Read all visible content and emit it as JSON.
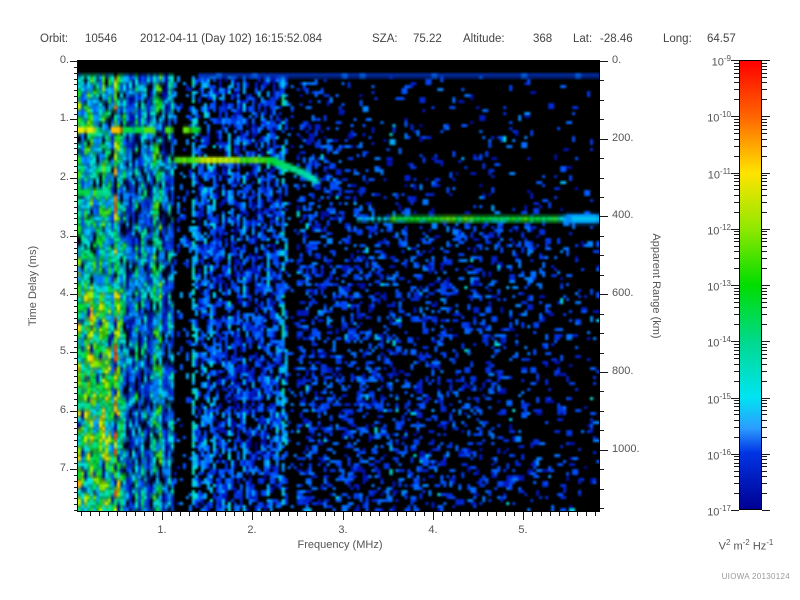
{
  "header": {
    "orbit_label": "Orbit:",
    "orbit_value": "10546",
    "datetime": "2012-04-11 (Day 102) 16:15:52.084",
    "sza_label": "SZA:",
    "sza_value": "75.22",
    "altitude_label": "Altitude:",
    "altitude_value": "368",
    "lat_label": "Lat:",
    "lat_value": "-28.46",
    "long_label": "Long:",
    "long_value": "64.57"
  },
  "footer": {
    "watermark": "UIOWA 20130124"
  },
  "chart_data": {
    "type": "heatmap",
    "description": "Radar sounder ionogram spectrogram: received spectral density vs frequency and time delay",
    "xlabel": "Frequency (MHz)",
    "ylabel_left": "Time Delay (ms)",
    "ylabel_right": "Apparent Range (km)",
    "x_range_mhz": [
      0.07,
      5.84
    ],
    "x_ticks_mhz": [
      1,
      2,
      3,
      4,
      5
    ],
    "x_tick_labels": [
      "1.",
      "2.",
      "3.",
      "4.",
      "5."
    ],
    "x_minor_step_mhz": 0.1,
    "y_range_ms": [
      0,
      7.72
    ],
    "y_ticks_ms": [
      0,
      1,
      2,
      3,
      4,
      5,
      6,
      7
    ],
    "y_tick_labels": [
      "0.",
      "1.",
      "2.",
      "3.",
      "4.",
      "5.",
      "6.",
      "7."
    ],
    "y_minor_step_ms": 0.1,
    "right_range_km": [
      0,
      1158
    ],
    "right_ticks_km": [
      0,
      200,
      400,
      600,
      800,
      1000
    ],
    "right_tick_labels": [
      "0.",
      "200.",
      "400.",
      "600.",
      "800.",
      "1000."
    ],
    "right_minor_step_km": 50,
    "grid": false,
    "legend_position": "right-colorbar",
    "colorbar": {
      "scale": "log",
      "max": "1e-9",
      "min": "1e-17",
      "tick_exponents": [
        "-9",
        "-10",
        "-11",
        "-12",
        "-13",
        "-14",
        "-15",
        "-16",
        "-17"
      ],
      "unit_parts": [
        {
          "t": "V",
          "s": "2"
        },
        {
          "t": "m",
          "s": "-2"
        },
        {
          "t": "Hz",
          "s": "-1"
        }
      ],
      "gradient": [
        {
          "p": 0.0,
          "c": "#ff0000"
        },
        {
          "p": 0.125,
          "c": "#ff6600"
        },
        {
          "p": 0.25,
          "c": "#ffe400"
        },
        {
          "p": 0.375,
          "c": "#90e800"
        },
        {
          "p": 0.5,
          "c": "#00dd00"
        },
        {
          "p": 0.625,
          "c": "#00d98c"
        },
        {
          "p": 0.75,
          "c": "#00e4f2"
        },
        {
          "p": 0.82,
          "c": "#2c9cff"
        },
        {
          "p": 0.875,
          "c": "#0034e4"
        },
        {
          "p": 1.0,
          "c": "#000092"
        }
      ]
    },
    "features": {
      "top_quiet_band_ms": [
        0,
        0.22
      ],
      "receiver_stripe_ms": 0.25,
      "local_plasma_noise_line": {
        "freq_mhz": [
          0.07,
          1.34
        ],
        "time_delay_ms": 1.18,
        "intensity": "green-yellow"
      },
      "plasma_harmonic_blob": {
        "freq_mhz": [
          0.07,
          0.42
        ],
        "time_delay_ms": 2.25,
        "intensity": "green"
      },
      "ionosphere_echo_trace": {
        "points_mhz_ms": [
          [
            1.14,
            1.7
          ],
          [
            2.17,
            1.7
          ],
          [
            2.3,
            1.78
          ],
          [
            2.5,
            1.9
          ],
          [
            2.7,
            2.08
          ]
        ],
        "intensity": "green"
      },
      "surface_reflection": {
        "freq_mhz": [
          3.17,
          5.84
        ],
        "time_delay_ms": 2.71,
        "apparent_range_km": 406,
        "intensity": "green"
      },
      "noise_texture": {
        "left_striped_region_mhz": [
          0.07,
          1.14
        ],
        "dark_band_mhz": [
          1.14,
          1.36
        ],
        "bright_line_mhz": 1.34,
        "bright_column_mhz": 0.48,
        "bright_band_mhz": [
          0.9,
          0.98
        ],
        "mid_noise_mhz": [
          1.36,
          2.39
        ],
        "dark_band2_mhz": [
          2.39,
          2.48
        ],
        "sparse_blob_region_mhz": [
          2.48,
          5.84
        ]
      }
    }
  }
}
